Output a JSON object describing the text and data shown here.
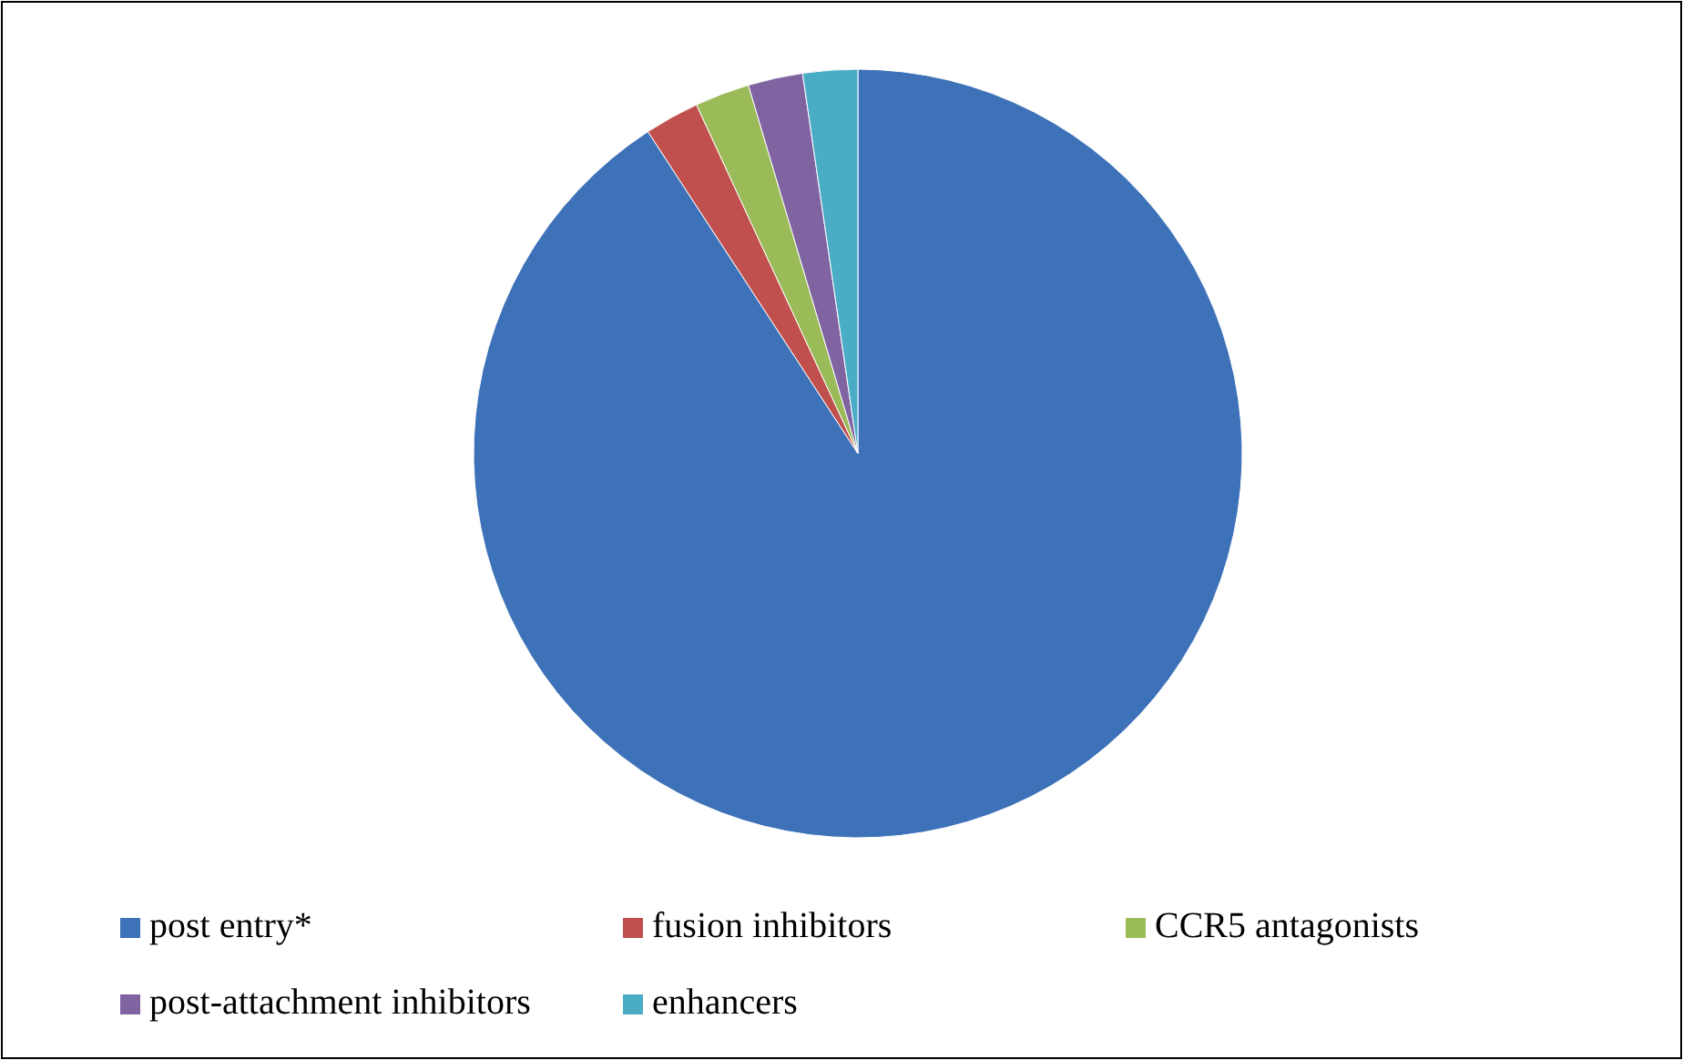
{
  "chart_data": {
    "type": "pie",
    "categories": [
      "post entry*",
      "fusion inhibitors",
      "CCR5 antagonists",
      "post-attachment inhibitors",
      "enhancers"
    ],
    "values": [
      90.8,
      2.3,
      2.3,
      2.3,
      2.3
    ],
    "colors": [
      "#3d71b8",
      "#c0504d",
      "#9bbb59",
      "#8064a2",
      "#4bacc6"
    ],
    "legend": "bottom"
  }
}
